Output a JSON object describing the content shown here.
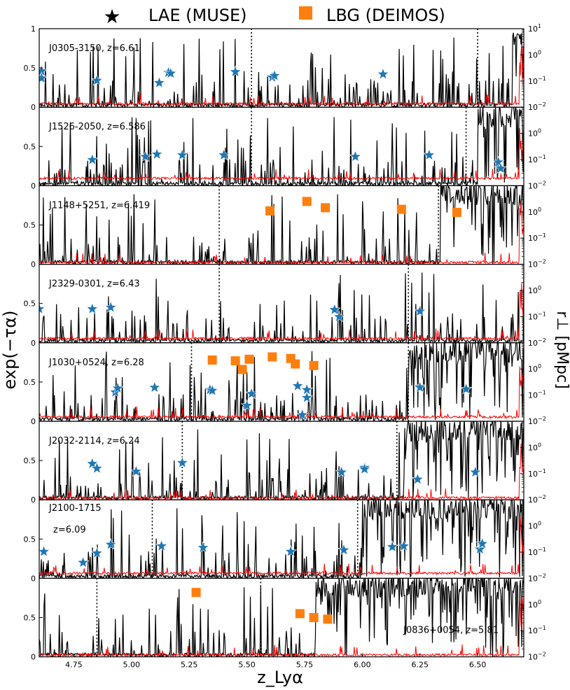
{
  "chart_data": {
    "type": "line",
    "xlabel": "z_Lyα",
    "ylabel_left": "exp(−τα)",
    "ylabel_right": "r⊥ [pMpc]",
    "xlim": [
      4.6,
      6.7
    ],
    "ylim_left": [
      0,
      1
    ],
    "ylim_right_log10": [
      -2,
      1
    ],
    "x_ticks": [
      4.75,
      5.0,
      5.25,
      5.5,
      5.75,
      6.0,
      6.25,
      6.5
    ],
    "x_tick_labels": [
      "4.75",
      "5.00",
      "5.25",
      "5.50",
      "5.75",
      "6.00",
      "6.25",
      "6.50"
    ],
    "y_ticks_left": [
      0,
      0.5,
      1
    ],
    "y_tick_labels_left": [
      "0",
      "0.5",
      "1"
    ],
    "y_tick_labels_right": [
      "10",
      "10",
      "10",
      "10"
    ],
    "y_tick_exponents_right": [
      "−2",
      "−1",
      "0",
      "1"
    ],
    "legend": [
      {
        "label": "LAE (MUSE)",
        "marker": "star",
        "color": "#1f77b4"
      },
      {
        "label": "LBG (DEIMOS)",
        "marker": "square",
        "color": "#ff7f0e"
      }
    ],
    "colors": {
      "flux": "#000000",
      "noise": "#ff0000",
      "lae": "#1f77b4",
      "lbg": "#ff7f0e"
    },
    "panels": [
      {
        "label": "J0305-3150, z=6.61",
        "label_pos": "top-left",
        "dotted": [
          5.52,
          6.5
        ],
        "onset": 6.65,
        "noise_level": 0.03,
        "lae": [
          [
            4.61,
            0.46
          ],
          [
            4.61,
            0.37
          ],
          [
            4.85,
            0.34
          ],
          [
            5.12,
            0.31
          ],
          [
            5.16,
            0.44
          ],
          [
            5.17,
            0.43
          ],
          [
            5.45,
            0.45
          ],
          [
            5.61,
            0.38
          ],
          [
            5.62,
            0.4
          ],
          [
            6.09,
            0.42
          ]
        ],
        "lbg": []
      },
      {
        "label": "J1526-2050, z=6.586",
        "label_pos": "top-left",
        "dotted": [
          5.52,
          6.45
        ],
        "onset": 6.5,
        "noise_level": 0.08,
        "lae": [
          [
            4.83,
            0.33
          ],
          [
            5.06,
            0.37
          ],
          [
            5.11,
            0.4
          ],
          [
            5.22,
            0.39
          ],
          [
            5.4,
            0.39
          ],
          [
            5.97,
            0.37
          ],
          [
            6.29,
            0.39
          ],
          [
            6.59,
            0.3
          ],
          [
            6.6,
            0.22
          ]
        ],
        "lbg": []
      },
      {
        "label": "J1148+5251, z=6.419",
        "label_pos": "top-left",
        "dotted": [
          5.38,
          6.33
        ],
        "onset": 6.34,
        "noise_level": 0.01,
        "lae": [],
        "lbg": [
          [
            5.6,
            0.68
          ],
          [
            5.76,
            0.8
          ],
          [
            5.84,
            0.72
          ],
          [
            6.17,
            0.7
          ],
          [
            6.41,
            0.66
          ]
        ]
      },
      {
        "label": "J2329-0301, z=6.43",
        "label_pos": "top-left",
        "dotted": [
          5.38,
          6.2
        ],
        "onset": 6.7,
        "noise_level": 0.04,
        "lae": [
          [
            4.6,
            0.43
          ],
          [
            4.83,
            0.43
          ],
          [
            4.91,
            0.45
          ],
          [
            5.88,
            0.42
          ],
          [
            5.9,
            0.33
          ],
          [
            6.25,
            0.4
          ]
        ],
        "lbg": []
      },
      {
        "label": "J1030+0524, z=6.28",
        "label_pos": "top-left",
        "dotted": [
          5.26,
          6.2
        ],
        "onset": 6.2,
        "noise_level": 0.04,
        "lae": [
          [
            4.93,
            0.37
          ],
          [
            4.94,
            0.42
          ],
          [
            5.1,
            0.43
          ],
          [
            5.34,
            0.4
          ],
          [
            5.35,
            0.39
          ],
          [
            5.5,
            0.2
          ],
          [
            5.52,
            0.35
          ],
          [
            5.72,
            0.45
          ],
          [
            5.74,
            0.08
          ],
          [
            5.76,
            0.4
          ],
          [
            5.76,
            0.3
          ],
          [
            6.25,
            0.44
          ],
          [
            6.25,
            0.43
          ],
          [
            6.45,
            0.41
          ]
        ],
        "lbg": [
          [
            5.35,
            0.78
          ],
          [
            5.45,
            0.77
          ],
          [
            5.48,
            0.66
          ],
          [
            5.51,
            0.79
          ],
          [
            5.61,
            0.82
          ],
          [
            5.69,
            0.8
          ],
          [
            5.71,
            0.73
          ],
          [
            5.79,
            0.71
          ]
        ]
      },
      {
        "label": "J2032-2114, z=6.24",
        "label_pos": "top-left",
        "dotted": [
          5.22,
          6.15
        ],
        "onset": 6.18,
        "noise_level": 0.01,
        "lae": [
          [
            4.83,
            0.46
          ],
          [
            4.85,
            0.4
          ],
          [
            5.02,
            0.36
          ],
          [
            5.22,
            0.47
          ],
          [
            5.91,
            0.35
          ],
          [
            6.01,
            0.41
          ],
          [
            6.01,
            0.39
          ],
          [
            6.24,
            0.26
          ],
          [
            6.49,
            0.35
          ]
        ],
        "lbg": []
      },
      {
        "label": "J2100-1715",
        "label2": "z=6.09",
        "label_pos": "top-left",
        "dotted": [
          5.09,
          5.98
        ],
        "onset": 6.0,
        "noise_level": 0.05,
        "lae": [
          [
            4.62,
            0.34
          ],
          [
            4.79,
            0.2
          ],
          [
            4.85,
            0.32
          ],
          [
            4.91,
            0.43
          ],
          [
            5.13,
            0.41
          ],
          [
            5.31,
            0.39
          ],
          [
            5.69,
            0.34
          ],
          [
            5.92,
            0.36
          ],
          [
            6.13,
            0.4
          ],
          [
            6.18,
            0.41
          ],
          [
            6.51,
            0.37
          ],
          [
            6.52,
            0.44
          ]
        ],
        "lbg": []
      },
      {
        "label": "J0836+0054, z=5.81",
        "label_pos": "bottom-right",
        "dotted": [
          4.85,
          5.56
        ],
        "onset": 5.8,
        "noise_level": 0.01,
        "lae": [],
        "lbg": [
          [
            5.28,
            0.82
          ],
          [
            5.73,
            0.55
          ],
          [
            5.79,
            0.5
          ],
          [
            5.85,
            0.48
          ]
        ]
      }
    ]
  }
}
